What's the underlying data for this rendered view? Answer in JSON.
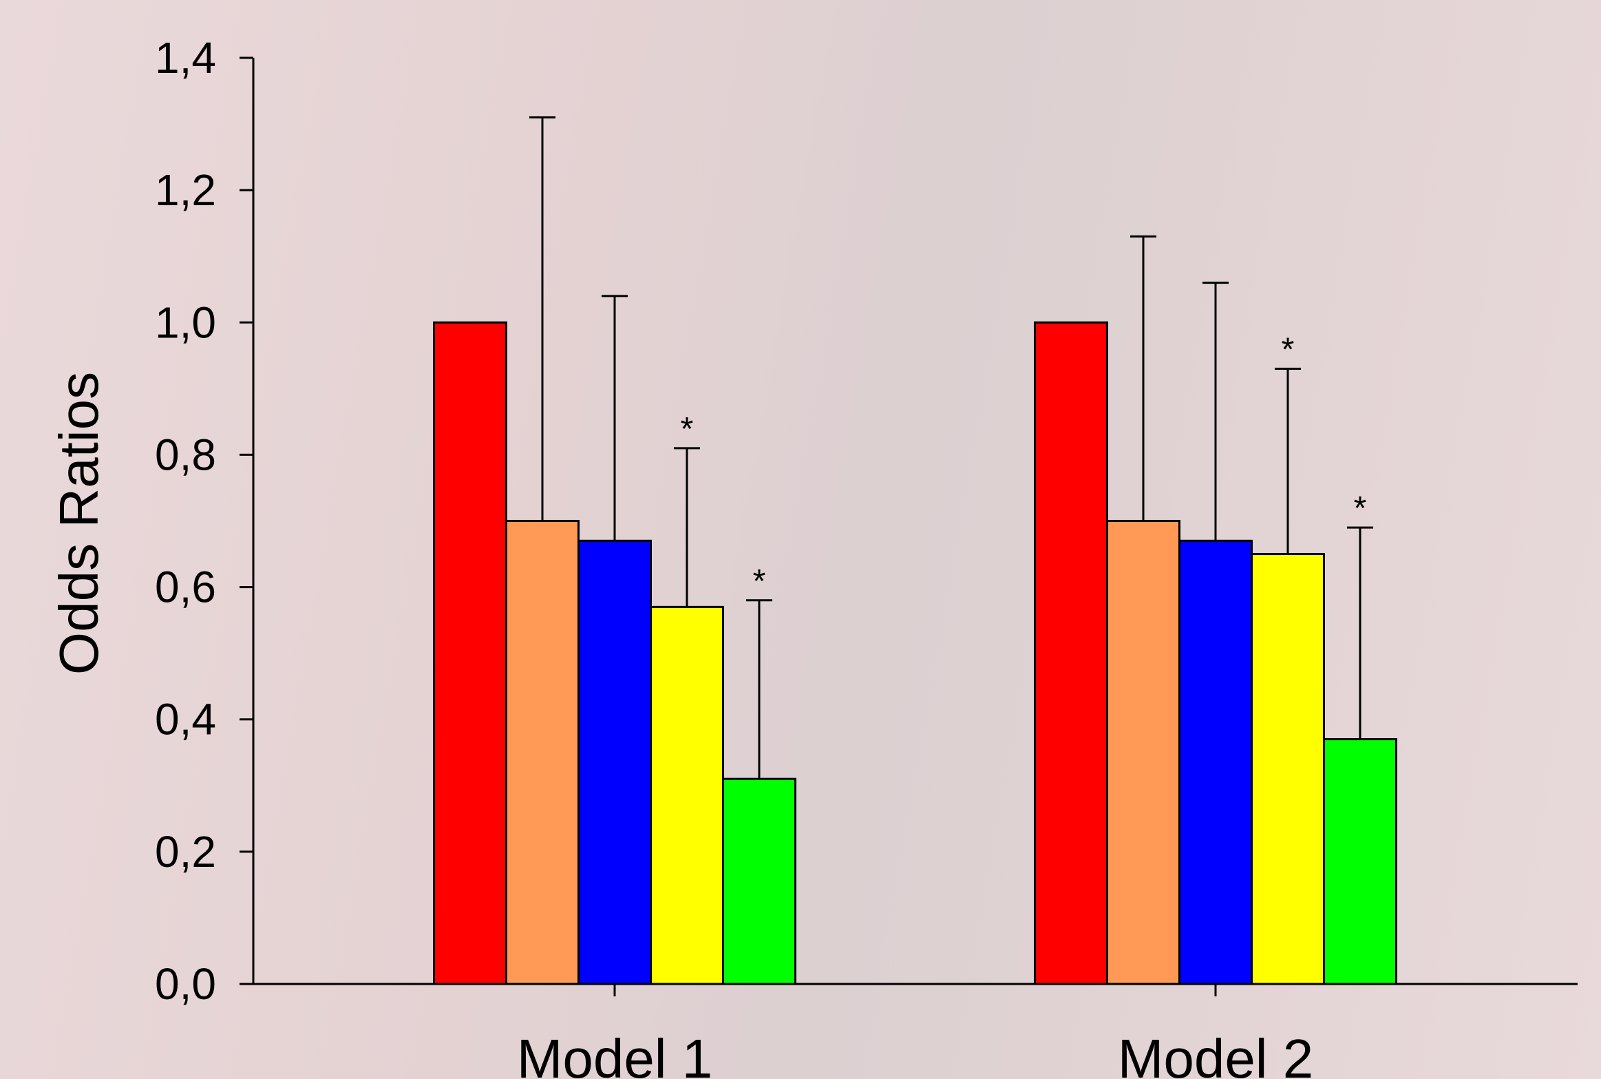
{
  "chart_data": {
    "type": "bar",
    "ylabel": "Odds Ratios",
    "xlabel": "",
    "ylim": [
      0,
      1.4
    ],
    "yticks": [
      0.0,
      0.2,
      0.4,
      0.6,
      0.8,
      1.0,
      1.2,
      1.4
    ],
    "ytick_labels": [
      "0,0",
      "0,2",
      "0,4",
      "0,6",
      "0,8",
      "1,0",
      "1,2",
      "1,4"
    ],
    "categories": [
      "Model 1",
      "Model 2"
    ],
    "grid": false,
    "legend": "none",
    "series": [
      {
        "color": "#ff0000",
        "values": [
          1.0,
          1.0
        ],
        "error_upper": [
          null,
          null
        ],
        "significant": [
          false,
          false
        ]
      },
      {
        "color": "#ff9955",
        "values": [
          0.7,
          0.7
        ],
        "error_upper": [
          1.31,
          1.13
        ],
        "significant": [
          false,
          false
        ]
      },
      {
        "color": "#0000ff",
        "values": [
          0.67,
          0.67
        ],
        "error_upper": [
          1.04,
          1.06
        ],
        "significant": [
          false,
          false
        ]
      },
      {
        "color": "#ffff00",
        "values": [
          0.57,
          0.65
        ],
        "error_upper": [
          0.81,
          0.93
        ],
        "significant": [
          true,
          true
        ]
      },
      {
        "color": "#00ff00",
        "values": [
          0.31,
          0.37
        ],
        "error_upper": [
          0.58,
          0.69
        ],
        "significant": [
          true,
          true
        ]
      }
    ],
    "significance_marker": "*"
  }
}
